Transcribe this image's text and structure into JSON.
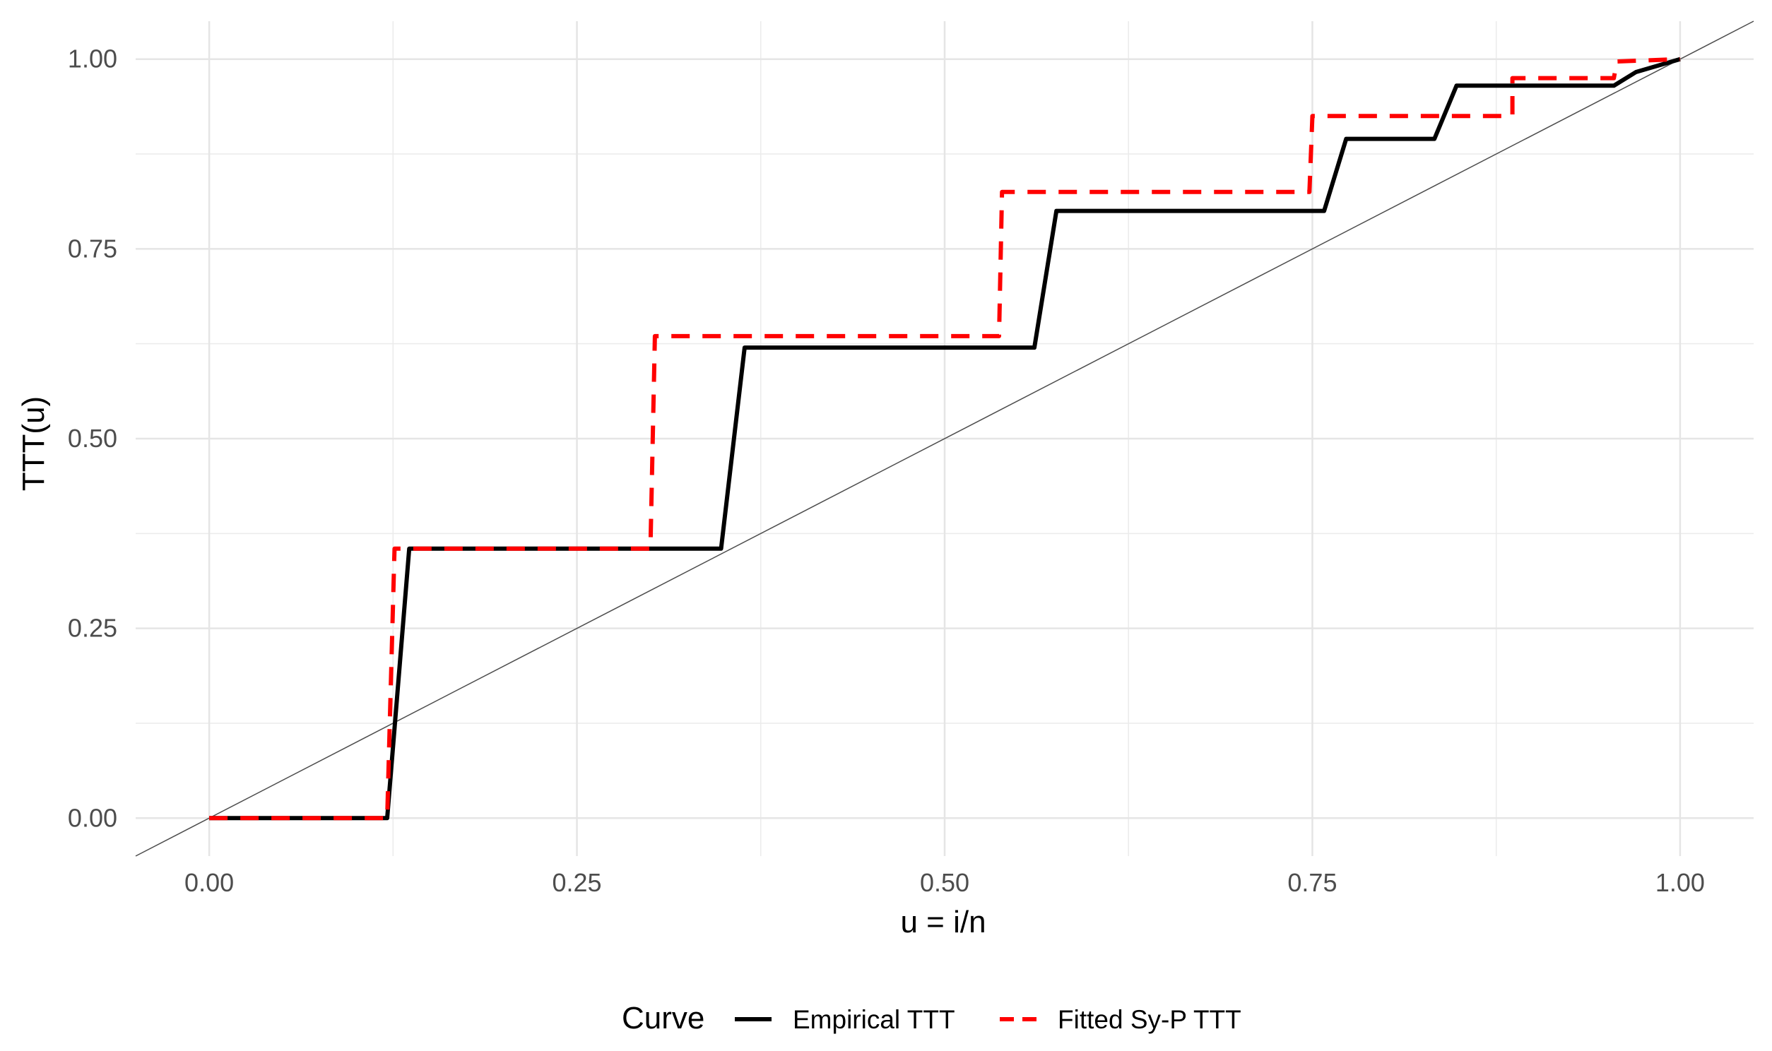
{
  "chart_data": {
    "type": "line",
    "xlabel": "u = i/n",
    "ylabel": "TTT(u)",
    "xlim": [
      -0.05,
      1.05
    ],
    "ylim": [
      -0.05,
      1.05
    ],
    "x_ticks": [
      0.0,
      0.25,
      0.5,
      0.75,
      1.0
    ],
    "x_tick_labels": [
      "0.00",
      "0.25",
      "0.50",
      "0.75",
      "1.00"
    ],
    "y_ticks": [
      0.0,
      0.25,
      0.5,
      0.75,
      1.0
    ],
    "y_tick_labels": [
      "0.00",
      "0.25",
      "0.50",
      "0.75",
      "1.00"
    ],
    "grid": true,
    "legend": {
      "title": "Curve",
      "placement": "bottom"
    },
    "reference_line": {
      "x": [
        -0.05,
        1.05
      ],
      "y": [
        -0.05,
        1.05
      ],
      "color": "#4d4d4d"
    },
    "series": [
      {
        "name": "Empirical TTT",
        "color": "#000000",
        "dash": "solid",
        "x": [
          0.0,
          0.121,
          0.136,
          0.348,
          0.364,
          0.561,
          0.576,
          0.758,
          0.773,
          0.833,
          0.848,
          0.955,
          0.97,
          1.0
        ],
        "y": [
          0.0,
          0.0,
          0.355,
          0.355,
          0.62,
          0.62,
          0.8,
          0.8,
          0.895,
          0.895,
          0.965,
          0.965,
          0.983,
          1.0
        ]
      },
      {
        "name": "Fitted Sy-P TTT",
        "color": "#ff0000",
        "dash": "dashed",
        "x": [
          0.0,
          0.121,
          0.126,
          0.3,
          0.303,
          0.537,
          0.539,
          0.748,
          0.75,
          0.886,
          0.886,
          0.955,
          0.957,
          1.0
        ],
        "y": [
          0.0,
          0.0,
          0.355,
          0.355,
          0.635,
          0.635,
          0.825,
          0.825,
          0.925,
          0.925,
          0.975,
          0.975,
          0.997,
          1.0
        ]
      }
    ]
  }
}
